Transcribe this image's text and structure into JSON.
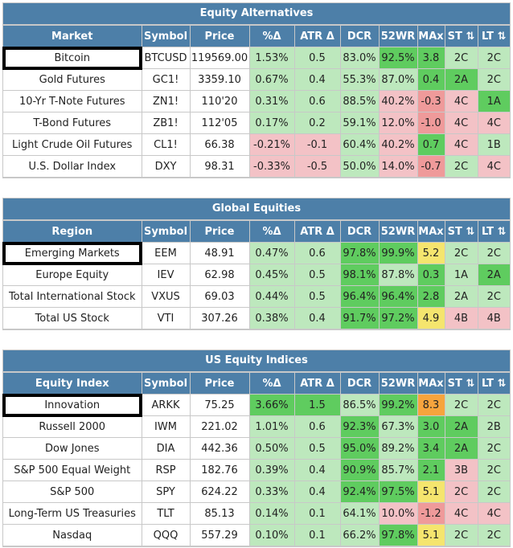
{
  "headers": [
    "Symbol",
    "Price",
    "%Δ",
    "ATR Δ",
    "DCR",
    "52WR",
    "MAx",
    "ST ⇅",
    "LT ⇅"
  ],
  "colors": {
    "header_bg": "#4d7fa8",
    "green_dark": "#5fcc5f",
    "green_light": "#bde8bd",
    "red_light": "#f3c2c6",
    "red_mid": "#ef9a9a",
    "yellow": "#f5e56e",
    "orange": "#f6a43d"
  },
  "sections": [
    {
      "id": "equity-alternatives",
      "title": "Equity Alternatives",
      "first_header": "Market",
      "rows": [
        {
          "name": "Bitcoin",
          "highlight": true,
          "symbol": "BTCUSD",
          "price": "119569.00",
          "pct": "1.53%",
          "atr": "0.5",
          "dcr": "83.0%",
          "wr52": "92.5%",
          "max": "3.8",
          "st": "2C",
          "lt": "2C",
          "tones": {
            "pct": "green_light",
            "atr": "green_light",
            "dcr": "green_light",
            "wr52": "green_dark",
            "max": "green_dark",
            "st": "green_light",
            "lt": "green_light"
          }
        },
        {
          "name": "Gold Futures",
          "highlight": false,
          "symbol": "GC1!",
          "price": "3359.10",
          "pct": "0.67%",
          "atr": "0.4",
          "dcr": "55.3%",
          "wr52": "87.0%",
          "max": "0.4",
          "st": "2A",
          "lt": "2C",
          "tones": {
            "pct": "green_light",
            "atr": "green_light",
            "dcr": "green_light",
            "wr52": "green_light",
            "max": "green_dark",
            "st": "green_dark",
            "lt": "green_light"
          }
        },
        {
          "name": "10-Yr T-Note Futures",
          "highlight": false,
          "symbol": "ZN1!",
          "price": "110'20",
          "pct": "0.31%",
          "atr": "0.6",
          "dcr": "88.5%",
          "wr52": "40.2%",
          "max": "-0.3",
          "st": "4C",
          "lt": "1A",
          "tones": {
            "pct": "green_light",
            "atr": "green_light",
            "dcr": "green_light",
            "wr52": "red_light",
            "max": "red_mid",
            "st": "red_light",
            "lt": "green_dark"
          }
        },
        {
          "name": "T-Bond Futures",
          "highlight": false,
          "symbol": "ZB1!",
          "price": "112'05",
          "pct": "0.17%",
          "atr": "0.2",
          "dcr": "59.1%",
          "wr52": "12.0%",
          "max": "-1.0",
          "st": "4C",
          "lt": "4C",
          "tones": {
            "pct": "green_light",
            "atr": "green_light",
            "dcr": "green_light",
            "wr52": "red_light",
            "max": "red_mid",
            "st": "red_light",
            "lt": "red_light"
          }
        },
        {
          "name": "Light Crude Oil Futures",
          "highlight": false,
          "symbol": "CL1!",
          "price": "66.38",
          "pct": "-0.21%",
          "atr": "-0.1",
          "dcr": "60.4%",
          "wr52": "40.2%",
          "max": "0.7",
          "st": "4C",
          "lt": "1B",
          "tones": {
            "pct": "red_light",
            "atr": "red_light",
            "dcr": "green_light",
            "wr52": "red_light",
            "max": "green_dark",
            "st": "red_light",
            "lt": "green_light"
          }
        },
        {
          "name": "U.S. Dollar Index",
          "highlight": false,
          "symbol": "DXY",
          "price": "98.31",
          "pct": "-0.33%",
          "atr": "-0.5",
          "dcr": "50.0%",
          "wr52": "14.0%",
          "max": "-0.7",
          "st": "2C",
          "lt": "4C",
          "tones": {
            "pct": "red_light",
            "atr": "red_light",
            "dcr": "green_light",
            "wr52": "red_light",
            "max": "red_mid",
            "st": "green_light",
            "lt": "red_light"
          }
        }
      ]
    },
    {
      "id": "global-equities",
      "title": "Global Equities",
      "first_header": "Region",
      "rows": [
        {
          "name": "Emerging Markets",
          "highlight": true,
          "symbol": "EEM",
          "price": "48.91",
          "pct": "0.47%",
          "atr": "0.6",
          "dcr": "97.8%",
          "wr52": "99.9%",
          "max": "5.2",
          "st": "2C",
          "lt": "2C",
          "tones": {
            "pct": "green_light",
            "atr": "green_light",
            "dcr": "green_dark",
            "wr52": "green_dark",
            "max": "yellow",
            "st": "green_light",
            "lt": "green_light"
          }
        },
        {
          "name": "Europe Equity",
          "highlight": false,
          "symbol": "IEV",
          "price": "62.98",
          "pct": "0.45%",
          "atr": "0.5",
          "dcr": "98.1%",
          "wr52": "87.8%",
          "max": "0.3",
          "st": "1A",
          "lt": "2A",
          "tones": {
            "pct": "green_light",
            "atr": "green_light",
            "dcr": "green_dark",
            "wr52": "green_light",
            "max": "green_dark",
            "st": "green_light",
            "lt": "green_dark"
          }
        },
        {
          "name": "Total International Stock",
          "highlight": false,
          "symbol": "VXUS",
          "price": "69.03",
          "pct": "0.44%",
          "atr": "0.5",
          "dcr": "96.4%",
          "wr52": "96.4%",
          "max": "2.8",
          "st": "2A",
          "lt": "2C",
          "tones": {
            "pct": "green_light",
            "atr": "green_light",
            "dcr": "green_dark",
            "wr52": "green_dark",
            "max": "green_dark",
            "st": "green_light",
            "lt": "green_light"
          }
        },
        {
          "name": "Total US Stock",
          "highlight": false,
          "symbol": "VTI",
          "price": "307.26",
          "pct": "0.38%",
          "atr": "0.4",
          "dcr": "91.7%",
          "wr52": "97.2%",
          "max": "4.9",
          "st": "4B",
          "lt": "4B",
          "tones": {
            "pct": "green_light",
            "atr": "green_light",
            "dcr": "green_dark",
            "wr52": "green_dark",
            "max": "yellow",
            "st": "red_light",
            "lt": "red_light"
          }
        }
      ]
    },
    {
      "id": "us-equity-indices",
      "title": "US Equity Indices",
      "first_header": "Equity Index",
      "rows": [
        {
          "name": "Innovation",
          "highlight": true,
          "symbol": "ARKK",
          "price": "75.25",
          "pct": "3.66%",
          "atr": "1.5",
          "dcr": "86.5%",
          "wr52": "99.2%",
          "max": "8.3",
          "st": "2C",
          "lt": "2C",
          "tones": {
            "pct": "green_dark",
            "atr": "green_dark",
            "dcr": "green_light",
            "wr52": "green_dark",
            "max": "orange",
            "st": "green_light",
            "lt": "green_light"
          }
        },
        {
          "name": "Russell 2000",
          "highlight": false,
          "symbol": "IWM",
          "price": "221.02",
          "pct": "1.01%",
          "atr": "0.6",
          "dcr": "92.3%",
          "wr52": "67.3%",
          "max": "3.0",
          "st": "2A",
          "lt": "2B",
          "tones": {
            "pct": "green_light",
            "atr": "green_light",
            "dcr": "green_dark",
            "wr52": "green_light",
            "max": "green_dark",
            "st": "green_dark",
            "lt": "green_light"
          }
        },
        {
          "name": "Dow Jones",
          "highlight": false,
          "symbol": "DIA",
          "price": "442.36",
          "pct": "0.50%",
          "atr": "0.5",
          "dcr": "95.0%",
          "wr52": "89.2%",
          "max": "3.4",
          "st": "2A",
          "lt": "2C",
          "tones": {
            "pct": "green_light",
            "atr": "green_light",
            "dcr": "green_dark",
            "wr52": "green_light",
            "max": "green_dark",
            "st": "green_dark",
            "lt": "green_light"
          }
        },
        {
          "name": "S&P 500 Equal Weight",
          "highlight": false,
          "symbol": "RSP",
          "price": "182.76",
          "pct": "0.39%",
          "atr": "0.4",
          "dcr": "90.9%",
          "wr52": "85.7%",
          "max": "2.1",
          "st": "3B",
          "lt": "2C",
          "tones": {
            "pct": "green_light",
            "atr": "green_light",
            "dcr": "green_dark",
            "wr52": "green_light",
            "max": "green_dark",
            "st": "red_light",
            "lt": "green_light"
          }
        },
        {
          "name": "S&P 500",
          "highlight": false,
          "symbol": "SPY",
          "price": "624.22",
          "pct": "0.33%",
          "atr": "0.4",
          "dcr": "92.4%",
          "wr52": "97.5%",
          "max": "5.1",
          "st": "2C",
          "lt": "2C",
          "tones": {
            "pct": "green_light",
            "atr": "green_light",
            "dcr": "green_dark",
            "wr52": "green_dark",
            "max": "yellow",
            "st": "red_light",
            "lt": "green_light"
          }
        },
        {
          "name": "Long-Term US Treasuries",
          "highlight": false,
          "symbol": "TLT",
          "price": "85.13",
          "pct": "0.14%",
          "atr": "0.1",
          "dcr": "64.1%",
          "wr52": "10.0%",
          "max": "-1.2",
          "st": "4C",
          "lt": "4C",
          "tones": {
            "pct": "green_light",
            "atr": "green_light",
            "dcr": "green_light",
            "wr52": "red_light",
            "max": "red_mid",
            "st": "red_light",
            "lt": "red_light"
          }
        },
        {
          "name": "Nasdaq",
          "highlight": false,
          "symbol": "QQQ",
          "price": "557.29",
          "pct": "0.10%",
          "atr": "0.1",
          "dcr": "66.2%",
          "wr52": "97.8%",
          "max": "5.1",
          "st": "2C",
          "lt": "2C",
          "tones": {
            "pct": "green_light",
            "atr": "green_light",
            "dcr": "green_light",
            "wr52": "green_dark",
            "max": "yellow",
            "st": "green_light",
            "lt": "green_light"
          }
        }
      ]
    }
  ]
}
